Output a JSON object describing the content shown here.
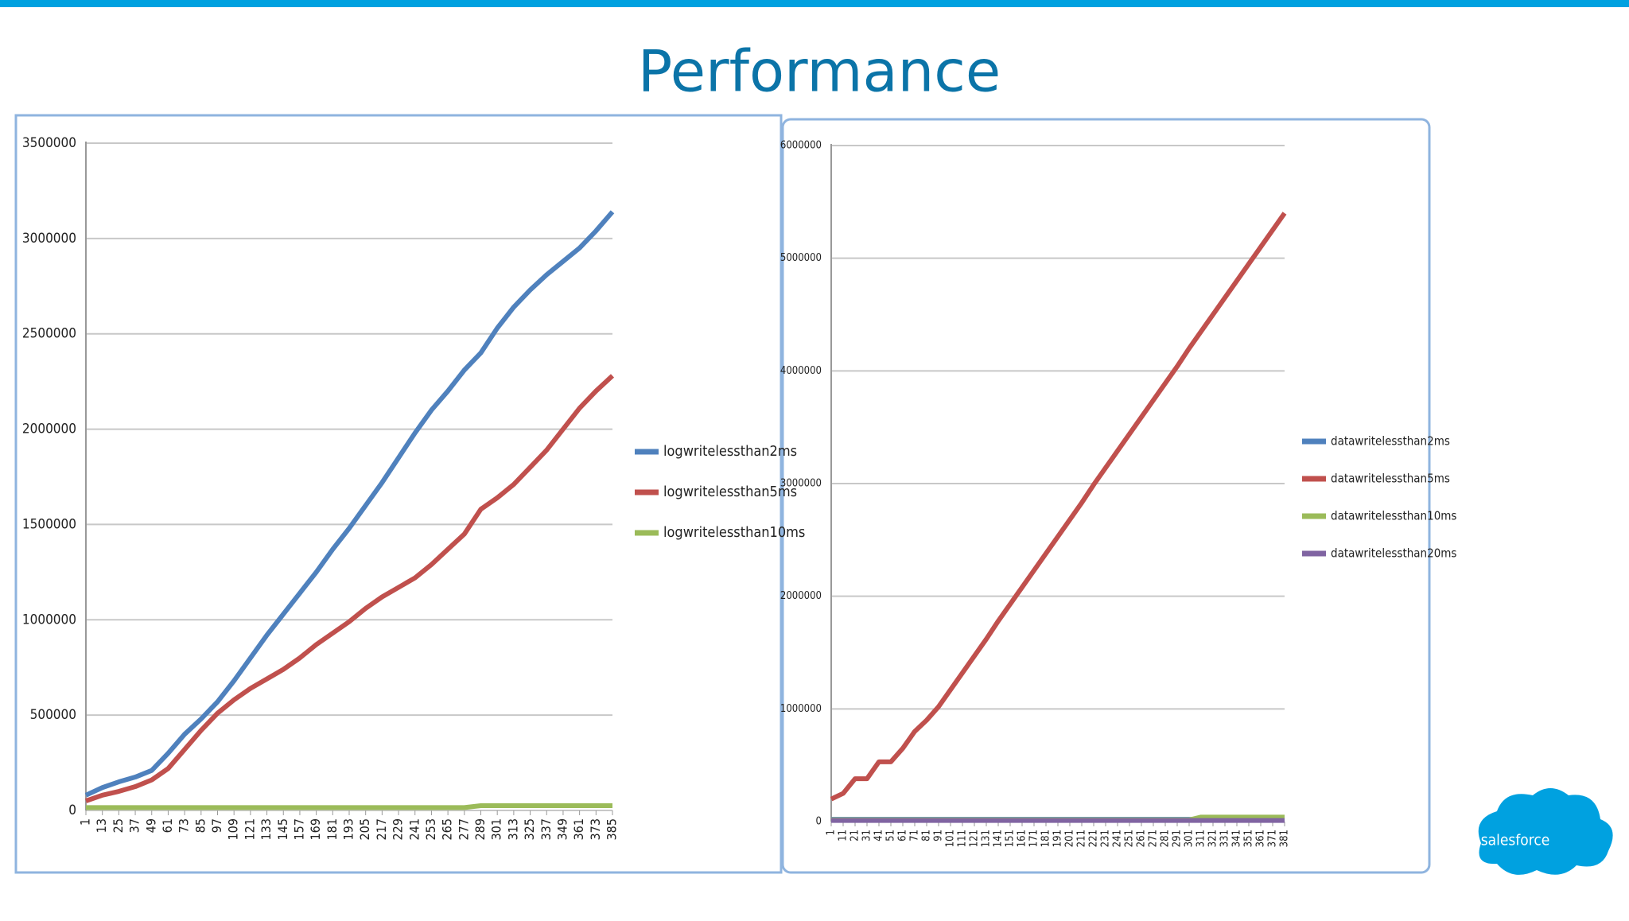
{
  "title": "Performance",
  "logo": "salesforce",
  "chart_data": [
    {
      "type": "line",
      "x": [
        1,
        13,
        25,
        37,
        49,
        61,
        73,
        85,
        97,
        109,
        121,
        133,
        145,
        157,
        169,
        181,
        193,
        205,
        217,
        229,
        241,
        253,
        265,
        277,
        289,
        301,
        313,
        325,
        337,
        349,
        361,
        373,
        385
      ],
      "xlim": [
        1,
        385
      ],
      "xticks": [
        1,
        13,
        25,
        37,
        49,
        61,
        73,
        85,
        97,
        109,
        121,
        133,
        145,
        157,
        169,
        181,
        193,
        205,
        217,
        229,
        241,
        253,
        265,
        277,
        289,
        301,
        313,
        325,
        337,
        349,
        361,
        373,
        385
      ],
      "ylim": [
        0,
        3500000
      ],
      "yticks": [
        0,
        500000,
        1000000,
        1500000,
        2000000,
        2500000,
        3000000,
        3500000
      ],
      "grid": true,
      "legend": "right",
      "series": [
        {
          "name": "logwritelessthan2ms",
          "color": "#4f81bd",
          "values": [
            80000,
            120000,
            150000,
            175000,
            210000,
            300000,
            400000,
            480000,
            570000,
            680000,
            800000,
            920000,
            1030000,
            1140000,
            1250000,
            1370000,
            1480000,
            1600000,
            1720000,
            1850000,
            1980000,
            2100000,
            2200000,
            2310000,
            2400000,
            2530000,
            2640000,
            2730000,
            2810000,
            2880000,
            2950000,
            3040000,
            3140000
          ]
        },
        {
          "name": "logwritelessthan5ms",
          "color": "#c0504d",
          "values": [
            50000,
            80000,
            100000,
            125000,
            160000,
            220000,
            320000,
            420000,
            510000,
            580000,
            640000,
            690000,
            740000,
            800000,
            870000,
            930000,
            990000,
            1060000,
            1120000,
            1170000,
            1220000,
            1290000,
            1370000,
            1450000,
            1580000,
            1640000,
            1710000,
            1800000,
            1890000,
            2000000,
            2110000,
            2200000,
            2280000
          ]
        },
        {
          "name": "logwritelessthan10ms",
          "color": "#9bbb59",
          "values": [
            15000,
            15000,
            15000,
            15000,
            15000,
            15000,
            15000,
            15000,
            15000,
            15000,
            15000,
            15000,
            15000,
            15000,
            15000,
            15000,
            15000,
            15000,
            15000,
            15000,
            15000,
            15000,
            15000,
            15000,
            25000,
            25000,
            25000,
            25000,
            25000,
            25000,
            25000,
            25000,
            25000
          ]
        }
      ]
    },
    {
      "type": "line",
      "x": [
        1,
        11,
        21,
        31,
        41,
        51,
        61,
        71,
        81,
        91,
        101,
        111,
        121,
        131,
        141,
        151,
        161,
        171,
        181,
        191,
        201,
        211,
        221,
        231,
        241,
        251,
        261,
        271,
        281,
        291,
        301,
        311,
        321,
        331,
        341,
        351,
        361,
        371,
        381
      ],
      "xlim": [
        1,
        381
      ],
      "xticks": [
        1,
        11,
        21,
        31,
        41,
        51,
        61,
        71,
        81,
        91,
        101,
        111,
        121,
        131,
        141,
        151,
        161,
        171,
        181,
        191,
        201,
        211,
        221,
        231,
        241,
        251,
        261,
        271,
        281,
        291,
        301,
        311,
        321,
        331,
        341,
        351,
        361,
        371,
        381
      ],
      "ylim": [
        0,
        6000000
      ],
      "yticks": [
        0,
        1000000,
        2000000,
        3000000,
        4000000,
        5000000,
        6000000
      ],
      "grid": true,
      "legend": "right",
      "series": [
        {
          "name": "datawritelessthan2ms",
          "color": "#4f81bd",
          "values": [
            20000,
            20000,
            20000,
            20000,
            20000,
            20000,
            20000,
            20000,
            20000,
            20000,
            20000,
            20000,
            20000,
            20000,
            20000,
            20000,
            20000,
            20000,
            20000,
            20000,
            20000,
            20000,
            20000,
            20000,
            20000,
            20000,
            20000,
            20000,
            20000,
            20000,
            20000,
            20000,
            20000,
            20000,
            20000,
            20000,
            20000,
            20000,
            20000
          ]
        },
        {
          "name": "datawritelessthan5ms",
          "color": "#c0504d",
          "values": [
            200000,
            250000,
            380000,
            380000,
            530000,
            530000,
            650000,
            800000,
            900000,
            1020000,
            1170000,
            1320000,
            1470000,
            1620000,
            1780000,
            1930000,
            2080000,
            2230000,
            2380000,
            2530000,
            2680000,
            2830000,
            2990000,
            3140000,
            3290000,
            3440000,
            3590000,
            3740000,
            3890000,
            4040000,
            4200000,
            4350000,
            4500000,
            4650000,
            4800000,
            4950000,
            5100000,
            5250000,
            5400000
          ]
        },
        {
          "name": "datawritelessthan10ms",
          "color": "#9bbb59",
          "values": [
            15000,
            15000,
            15000,
            15000,
            15000,
            15000,
            15000,
            15000,
            15000,
            15000,
            15000,
            15000,
            15000,
            15000,
            15000,
            15000,
            15000,
            15000,
            15000,
            15000,
            15000,
            15000,
            15000,
            15000,
            15000,
            15000,
            15000,
            15000,
            15000,
            15000,
            15000,
            40000,
            40000,
            40000,
            40000,
            40000,
            40000,
            40000,
            40000
          ]
        },
        {
          "name": "datawritelessthan20ms",
          "color": "#8064a2",
          "values": [
            10000,
            10000,
            10000,
            10000,
            10000,
            10000,
            10000,
            10000,
            10000,
            10000,
            10000,
            10000,
            10000,
            10000,
            10000,
            10000,
            10000,
            10000,
            10000,
            10000,
            10000,
            10000,
            10000,
            10000,
            10000,
            10000,
            10000,
            10000,
            10000,
            10000,
            10000,
            10000,
            10000,
            10000,
            10000,
            10000,
            10000,
            10000,
            10000
          ]
        }
      ]
    }
  ]
}
